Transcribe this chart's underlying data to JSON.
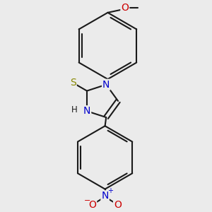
{
  "bg_color": "#ebebeb",
  "bond_color": "#1a1a1a",
  "bond_width": 1.5,
  "atom_colors": {
    "N": "#0000cc",
    "O": "#cc0000",
    "S": "#888800",
    "H": "#1a1a1a",
    "C": "#1a1a1a"
  },
  "font_size_atom": 10,
  "font_size_small": 8.5
}
